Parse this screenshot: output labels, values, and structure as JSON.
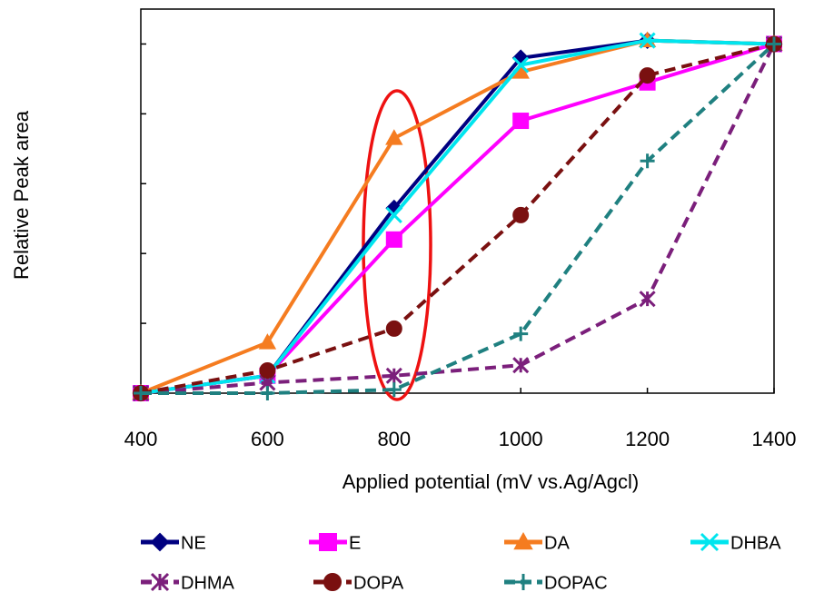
{
  "chart_data": {
    "type": "line",
    "xlabel": "Applied potential (mV vs.Ag/Agcl)",
    "ylabel": "Relative Peak area",
    "x": [
      400,
      600,
      800,
      1000,
      1200,
      1400
    ],
    "xlim": [
      400,
      1400
    ],
    "xticks": [
      400,
      600,
      800,
      1000,
      1200,
      1400
    ],
    "ylim": [
      0,
      1.1
    ],
    "yticks": [
      0,
      0.2,
      0.4,
      0.6,
      0.8,
      1.0
    ],
    "series": [
      {
        "name": "NE",
        "color": "#000080",
        "marker": "diamond",
        "dashed": false,
        "values": [
          0,
          0.05,
          0.53,
          0.96,
          1.01,
          1.0
        ]
      },
      {
        "name": "E",
        "color": "#ff00ff",
        "marker": "square",
        "dashed": false,
        "values": [
          0,
          0.05,
          0.44,
          0.78,
          0.89,
          1.0
        ]
      },
      {
        "name": "DA",
        "color": "#f57c20",
        "marker": "triangle",
        "dashed": false,
        "values": [
          0,
          0.145,
          0.73,
          0.92,
          1.01,
          1.0
        ]
      },
      {
        "name": "DHBA",
        "color": "#00e5ee",
        "marker": "x",
        "dashed": false,
        "values": [
          0,
          0.05,
          0.51,
          0.94,
          1.01,
          1.0
        ]
      },
      {
        "name": "DHMA",
        "color": "#7b1f7b",
        "marker": "asterisk",
        "dashed": true,
        "values": [
          0,
          0.03,
          0.05,
          0.08,
          0.27,
          1.0
        ]
      },
      {
        "name": "DOPA",
        "color": "#7a1010",
        "marker": "circle",
        "dashed": true,
        "values": [
          0,
          0.065,
          0.185,
          0.51,
          0.91,
          1.0
        ]
      },
      {
        "name": "DOPAC",
        "color": "#1f8080",
        "marker": "plus",
        "dashed": true,
        "values": [
          0,
          0,
          0.01,
          0.17,
          0.665,
          1.0
        ]
      }
    ]
  }
}
